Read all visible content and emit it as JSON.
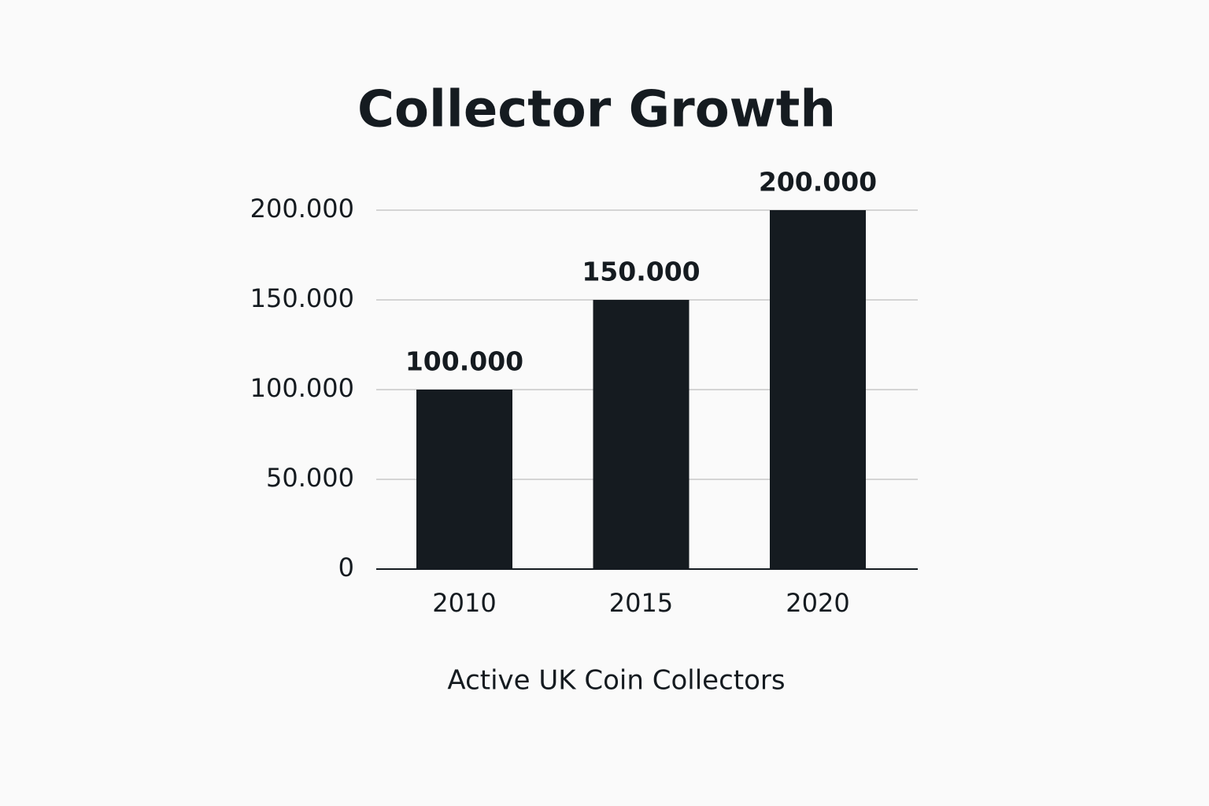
{
  "chart_data": {
    "type": "bar",
    "title": "Collector Growth",
    "x_label": "Active UK Coin Collectors",
    "categories": [
      "2010",
      "2015",
      "2020"
    ],
    "values": [
      100000,
      150000,
      200000
    ],
    "value_labels": [
      "100.000",
      "150.000",
      "200.000"
    ],
    "color": "#151b20",
    "ylim": [
      0,
      200000
    ],
    "yticks": [
      0,
      {
        "value": 50000,
        "label": "50.000"
      },
      {
        "value": 100000,
        "label": "100.000"
      },
      {
        "value": 150000,
        "label": "150.000"
      },
      {
        "value": 200000,
        "label": "200.000"
      }
    ],
    "grid": true
  }
}
